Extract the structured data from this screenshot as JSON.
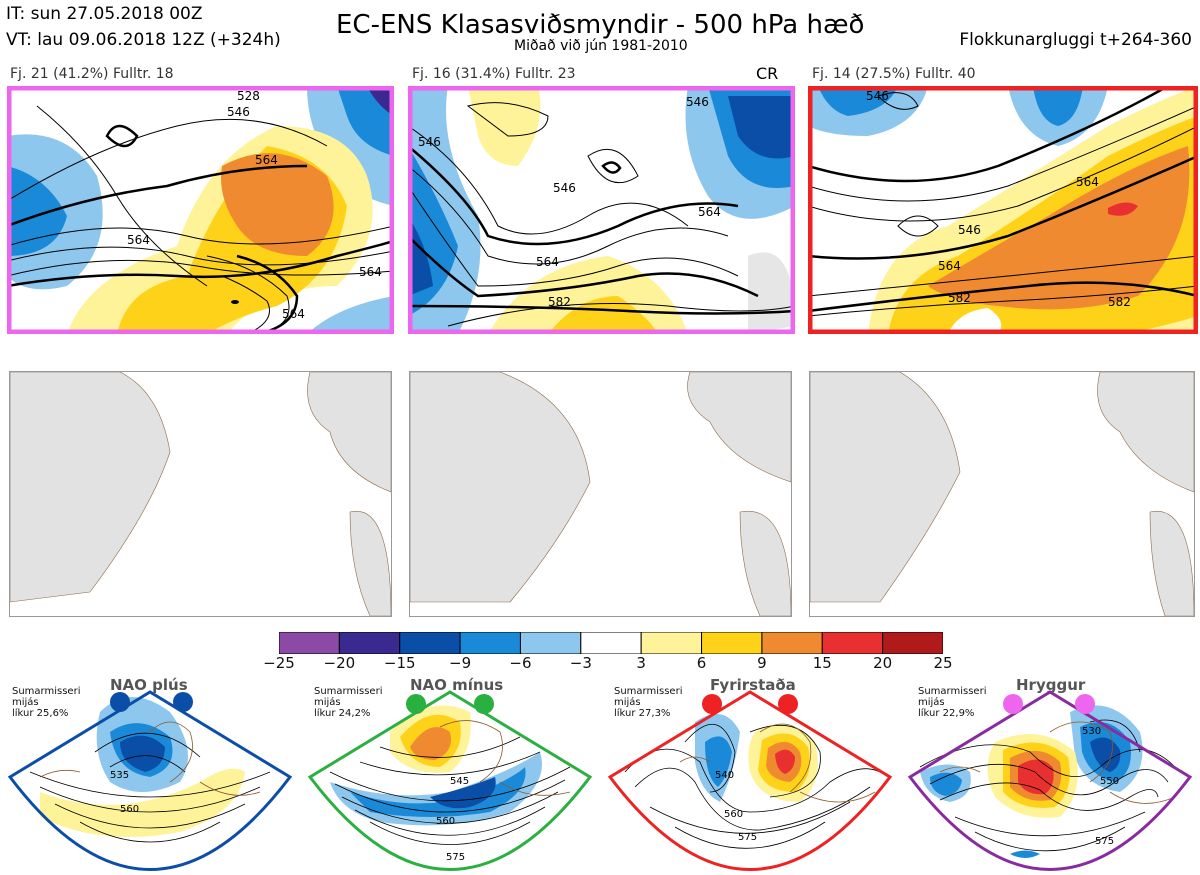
{
  "header": {
    "it": "IT: sun 27.05.2018 00Z",
    "vt": "VT: lau 09.06.2018 12Z  (+324h)",
    "title": "EC-ENS Klasasviðsmyndir - 500 hPa hæð",
    "subtitle": "Miðað við jún 1981-2010",
    "window": "Flokkunargluggi t+264-360"
  },
  "panels": [
    {
      "label": "Fj. 21 (41.2%)   Fulltr. 18",
      "border_color": "#ee66ee",
      "contours": [
        "546",
        "564",
        "564",
        "564",
        "564",
        "528"
      ]
    },
    {
      "label": "Fj. 16 (31.4%)   Fulltr. 23",
      "border_color": "#ee66ee",
      "badge": "CR",
      "contours": [
        "546",
        "546",
        "564",
        "564",
        "582",
        "546"
      ]
    },
    {
      "label": "Fj. 14 (27.5%)   Fulltr. 40",
      "border_color": "#ee2222",
      "contours": [
        "546",
        "546",
        "564",
        "564",
        "582",
        "582"
      ]
    }
  ],
  "colorbar": {
    "ticks": [
      "−25",
      "−20",
      "−15",
      "−9",
      "−6",
      "−3",
      "3",
      "6",
      "9",
      "15",
      "20",
      "25"
    ],
    "colors": [
      "#8b4aa6",
      "#3a2a90",
      "#0b4ea8",
      "#1a8ad8",
      "#8ec7ee",
      "#ffffff",
      "#fff39a",
      "#ffd21a",
      "#f08a30",
      "#e83030",
      "#b01a1a"
    ]
  },
  "regimes": [
    {
      "name": "NAO plús",
      "note": "Sumarmisseri\nmijás\nlíkur 25,6%",
      "color": "#0b4ea8",
      "contours": [
        "535",
        "560"
      ]
    },
    {
      "name": "NAO mínus",
      "note": "Sumarmisseri\nmijás\nlíkur 24,2%",
      "color": "#2ab040",
      "contours": [
        "545",
        "560",
        "575"
      ]
    },
    {
      "name": "Fyrirstaða",
      "note": "Sumarmisseri\nmijás\nlíkur 27,3%",
      "color": "#ee2222",
      "contours": [
        "540",
        "560",
        "575"
      ]
    },
    {
      "name": "Hryggur",
      "note": "Sumarmisseri\nmijás\nlíkur 22,9%",
      "color": "#ee66ee",
      "contours": [
        "530",
        "550",
        "575"
      ]
    }
  ]
}
